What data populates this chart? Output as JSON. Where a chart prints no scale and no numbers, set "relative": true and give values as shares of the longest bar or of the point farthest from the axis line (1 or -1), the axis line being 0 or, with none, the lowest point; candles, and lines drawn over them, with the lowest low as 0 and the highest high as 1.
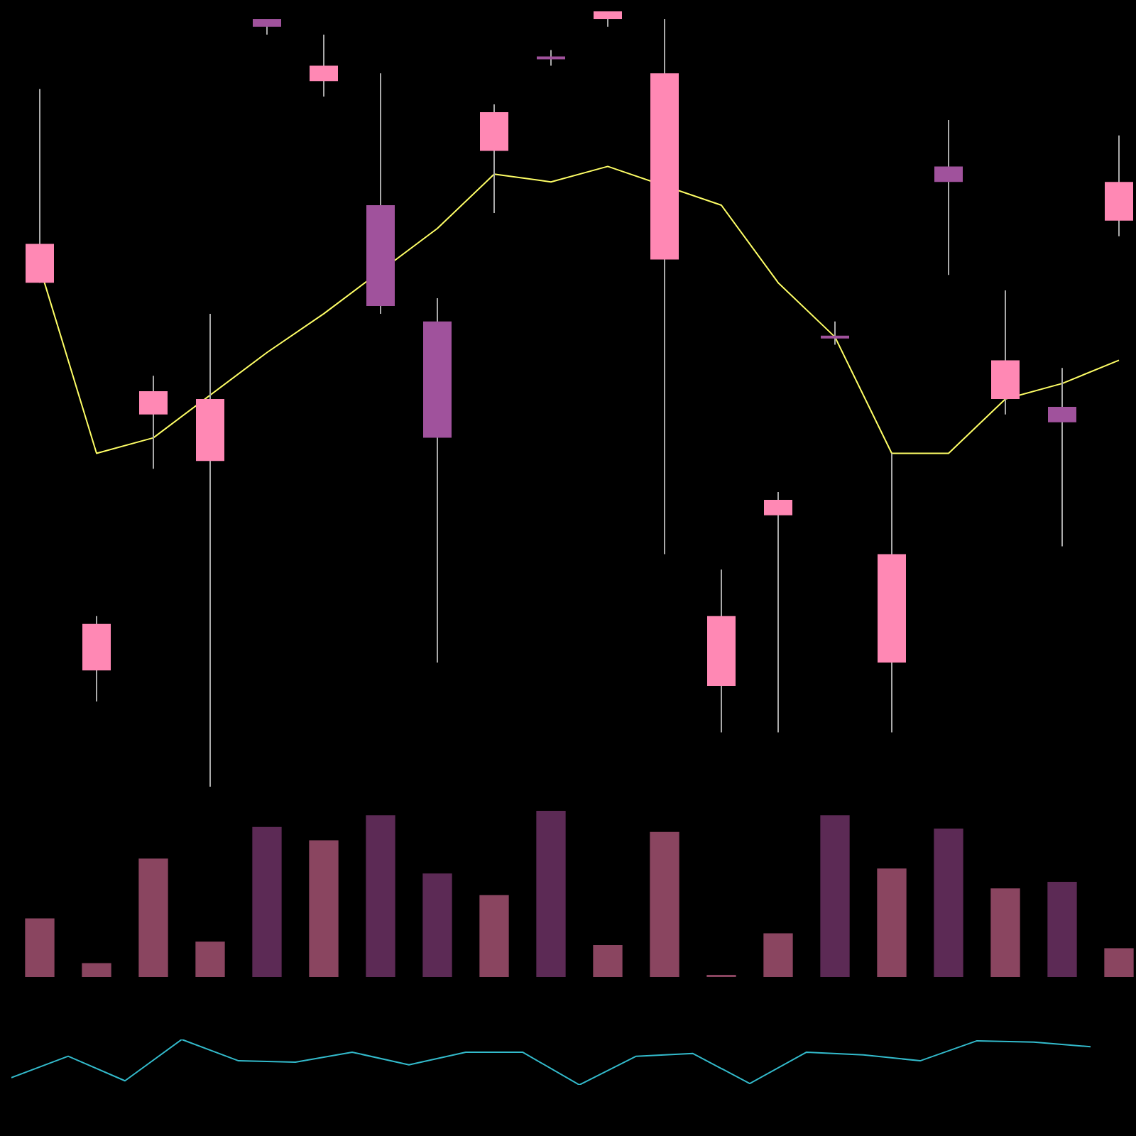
{
  "chart_data": [
    {
      "type": "candlestick",
      "relative": true,
      "tick_labels": false,
      "grid": false,
      "legend": false,
      "categories": [
        null,
        null,
        null,
        null,
        null,
        null,
        null,
        null,
        null,
        null,
        null,
        null,
        null,
        null,
        null,
        null,
        null,
        null,
        null,
        null
      ],
      "ohlc": [
        [
          0.65,
          0.9,
          0.65,
          0.7
        ],
        [
          0.15,
          0.22,
          0.11,
          0.21
        ],
        [
          0.48,
          0.53,
          0.41,
          0.51
        ],
        [
          0.42,
          0.61,
          0,
          0.5
        ],
        [
          0.99,
          0.99,
          0.97,
          0.98
        ],
        [
          0.91,
          0.97,
          0.89,
          0.93
        ],
        [
          0.75,
          0.92,
          0.61,
          0.62
        ],
        [
          0.6,
          0.63,
          0.16,
          0.45
        ],
        [
          0.82,
          0.88,
          0.74,
          0.87
        ],
        [
          0.94,
          0.95,
          0.93,
          0.94
        ],
        [
          0.99,
          1,
          0.98,
          1
        ],
        [
          0.68,
          0.99,
          0.3,
          0.92
        ],
        [
          0.13,
          0.28,
          0.07,
          0.22
        ],
        [
          0.35,
          0.38,
          0.07,
          0.37
        ],
        [
          0.58,
          0.6,
          0.57,
          0.58
        ],
        [
          0.16,
          0.43,
          0.07,
          0.3
        ],
        [
          0.8,
          0.86,
          0.66,
          0.78
        ],
        [
          0.5,
          0.64,
          0.48,
          0.55
        ],
        [
          0.49,
          0.54,
          0.31,
          0.47
        ],
        [
          0.73,
          0.84,
          0.71,
          0.78
        ]
      ],
      "colors": [
        "#ff88b4",
        "#ff88b4",
        "#ff88b4",
        "#ff88b4",
        "#a0529c",
        "#ff88b4",
        "#a0529c",
        "#a0529c",
        "#ff88b4",
        "#a0529c",
        "#ff88b4",
        "#ff88b4",
        "#ff88b4",
        "#ff88b4",
        "#a0529c",
        "#ff88b4",
        "#a0529c",
        "#ff88b4",
        "#a0529c",
        "#ff88b4"
      ],
      "series": [
        {
          "type": "line",
          "color": "#ffff66",
          "values": [
            0.67,
            0.43,
            0.45,
            null,
            0.56,
            0.61,
            null,
            0.72,
            0.79,
            0.78,
            0.8,
            null,
            0.75,
            0.65,
            0.58,
            0.43,
            0.43,
            0.5,
            0.52,
            0.55
          ]
        }
      ]
    },
    {
      "type": "bar",
      "relative": true,
      "tick_labels": false,
      "grid": false,
      "legend": false,
      "categories": [
        null,
        null,
        null,
        null,
        null,
        null,
        null,
        null,
        null,
        null,
        null,
        null,
        null,
        null,
        null,
        null,
        null,
        null,
        null,
        null
      ],
      "values": [
        0.35,
        0.08,
        0.71,
        0.21,
        0.9,
        0.82,
        0.97,
        0.62,
        0.49,
        1,
        0.19,
        0.87,
        0.01,
        0.26,
        0.97,
        0.65,
        0.89,
        0.53,
        0.57,
        0.17
      ],
      "colors": [
        "#8a4560",
        "#8a4560",
        "#8a4560",
        "#8a4560",
        "#5c2a55",
        "#8a4560",
        "#5c2a55",
        "#5c2a55",
        "#8a4560",
        "#5c2a55",
        "#8a4560",
        "#8a4560",
        "#8a4560",
        "#8a4560",
        "#5c2a55",
        "#8a4560",
        "#5c2a55",
        "#8a4560",
        "#5c2a55",
        "#8a4560"
      ]
    },
    {
      "type": "line",
      "relative": true,
      "tick_labels": false,
      "grid": false,
      "legend": false,
      "color": "#33bbcc",
      "categories": [
        null,
        null,
        null,
        null,
        null,
        null,
        null,
        null,
        null,
        null,
        null,
        null,
        null,
        null,
        null,
        null,
        null,
        null,
        null,
        null
      ],
      "values": [
        0.16,
        0.63,
        0.09,
        1,
        0.53,
        0.5,
        0.72,
        0.44,
        0.72,
        0.72,
        0,
        0.63,
        0.69,
        0.03,
        0.72,
        0.66,
        0.53,
        0.97,
        0.94,
        0.84
      ]
    }
  ]
}
